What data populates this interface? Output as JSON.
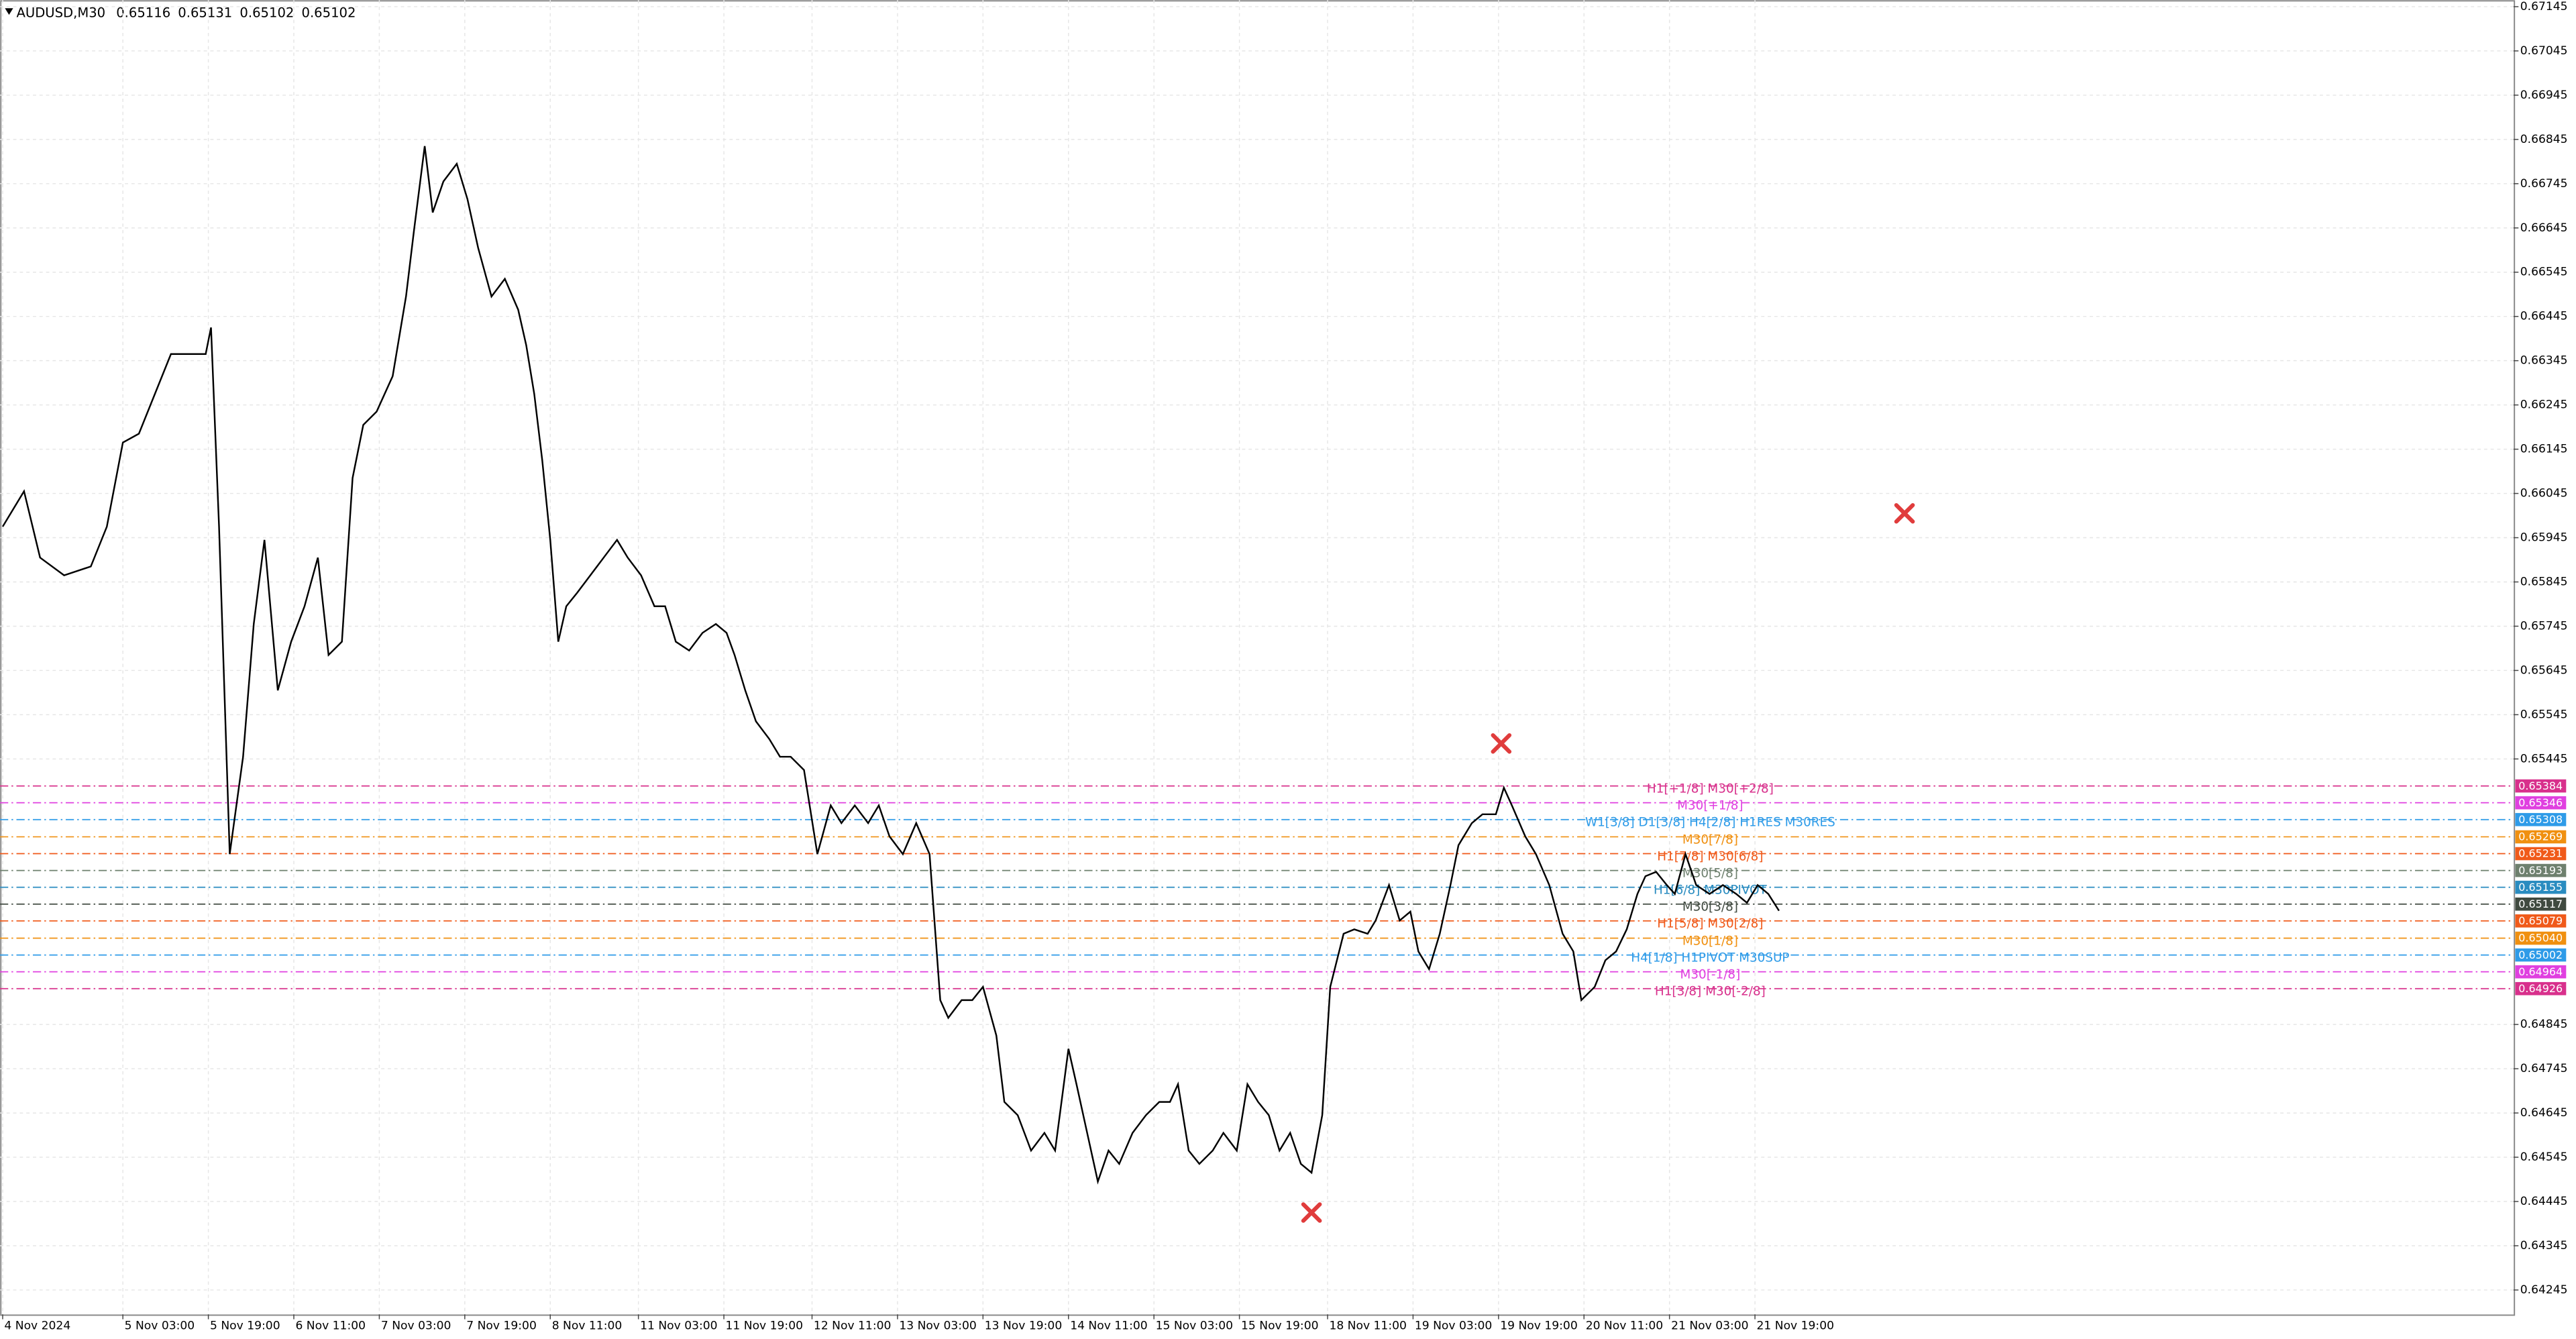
{
  "chart_data": {
    "type": "line",
    "symbol": "AUDUSD,M30",
    "ohlc": [
      0.65116,
      0.65131,
      0.65102,
      0.65102
    ],
    "xlim": [
      -1,
      940
    ],
    "ylim": [
      0.6419,
      0.6716
    ],
    "grid": true,
    "xticks": [
      {
        "value": 0,
        "label": "4 Nov 2024"
      },
      {
        "value": 45,
        "label": "5 Nov 03:00"
      },
      {
        "value": 77,
        "label": "5 Nov 19:00"
      },
      {
        "value": 109,
        "label": "6 Nov 11:00"
      },
      {
        "value": 141,
        "label": "7 Nov 03:00"
      },
      {
        "value": 173,
        "label": "7 Nov 19:00"
      },
      {
        "value": 205,
        "label": "8 Nov 11:00"
      },
      {
        "value": 238,
        "label": "11 Nov 03:00"
      },
      {
        "value": 270,
        "label": "11 Nov 19:00"
      },
      {
        "value": 303,
        "label": "12 Nov 11:00"
      },
      {
        "value": 335,
        "label": "13 Nov 03:00"
      },
      {
        "value": 367,
        "label": "13 Nov 19:00"
      },
      {
        "value": 399,
        "label": "14 Nov 11:00"
      },
      {
        "value": 431,
        "label": "15 Nov 03:00"
      },
      {
        "value": 463,
        "label": "15 Nov 19:00"
      },
      {
        "value": 496,
        "label": "18 Nov 11:00"
      },
      {
        "value": 528,
        "label": "19 Nov 03:00"
      },
      {
        "value": 560,
        "label": "19 Nov 19:00"
      },
      {
        "value": 592,
        "label": "20 Nov 11:00"
      },
      {
        "value": 624,
        "label": "21 Nov 03:00"
      },
      {
        "value": 656,
        "label": "21 Nov 19:00"
      }
    ],
    "yticks": [
      0.67145,
      0.67045,
      0.66945,
      0.66845,
      0.66745,
      0.66645,
      0.66545,
      0.66445,
      0.66345,
      0.66245,
      0.66145,
      0.66045,
      0.65945,
      0.65845,
      0.65745,
      0.65645,
      0.65545,
      0.65445,
      0.64845,
      0.64745,
      0.64645,
      0.64545,
      0.64445,
      0.64345,
      0.64245
    ],
    "x": [
      0,
      8,
      14,
      23,
      33,
      39,
      45,
      51,
      57,
      63,
      70,
      76,
      78,
      81,
      85,
      90,
      94,
      98,
      103,
      108,
      113,
      118,
      122,
      127,
      131,
      135,
      140,
      146,
      151,
      154,
      158,
      161,
      165,
      170,
      174,
      178,
      183,
      188,
      193,
      196,
      199,
      202,
      205,
      208,
      211,
      215,
      220,
      225,
      230,
      234,
      239,
      244,
      248,
      252,
      257,
      262,
      267,
      271,
      274,
      278,
      282,
      287,
      291,
      295,
      300,
      305,
      310,
      314,
      319,
      324,
      328,
      332,
      337,
      342,
      347,
      351,
      354,
      359,
      363,
      367,
      372,
      375,
      380,
      385,
      390,
      394,
      399,
      402,
      406,
      410,
      414,
      418,
      423,
      428,
      433,
      437,
      440,
      444,
      448,
      453,
      457,
      462,
      466,
      470,
      474,
      478,
      482,
      486,
      490,
      494,
      497,
      502,
      506,
      511,
      514,
      519,
      523,
      527,
      530,
      534,
      538,
      542,
      545,
      550,
      554,
      559,
      562,
      565,
      570,
      574,
      579,
      584,
      588,
      591,
      596,
      600,
      604,
      608,
      612,
      615,
      619,
      623,
      626,
      630,
      634,
      639,
      644,
      649,
      653,
      657,
      661,
      665
    ],
    "series": [
      {
        "color": "#000000",
        "values": [
          0.6597,
          0.6605,
          0.659,
          0.6586,
          0.6588,
          0.6597,
          0.6616,
          0.6618,
          0.6627,
          0.6636,
          0.6636,
          0.6636,
          0.6642,
          0.6597,
          0.6523,
          0.6545,
          0.6575,
          0.6594,
          0.656,
          0.6571,
          0.6579,
          0.659,
          0.6568,
          0.6571,
          0.6608,
          0.662,
          0.6623,
          0.6631,
          0.6649,
          0.6664,
          0.6683,
          0.6668,
          0.6675,
          0.6679,
          0.6671,
          0.666,
          0.6649,
          0.6653,
          0.6646,
          0.6638,
          0.6627,
          0.6612,
          0.6594,
          0.6571,
          0.6579,
          0.6582,
          0.6586,
          0.659,
          0.6594,
          0.659,
          0.6586,
          0.6579,
          0.6579,
          0.6571,
          0.6569,
          0.6573,
          0.6575,
          0.6573,
          0.6568,
          0.656,
          0.6553,
          0.6549,
          0.6545,
          0.6545,
          0.6542,
          0.6523,
          0.6534,
          0.653,
          0.6534,
          0.653,
          0.6534,
          0.6527,
          0.6523,
          0.653,
          0.6523,
          0.649,
          0.6486,
          0.649,
          0.649,
          0.6493,
          0.6482,
          0.6467,
          0.6464,
          0.6456,
          0.646,
          0.6456,
          0.6479,
          0.6471,
          0.646,
          0.6449,
          0.6456,
          0.6453,
          0.646,
          0.6464,
          0.6467,
          0.6467,
          0.6471,
          0.6456,
          0.6453,
          0.6456,
          0.646,
          0.6456,
          0.6471,
          0.6467,
          0.6464,
          0.6456,
          0.646,
          0.6453,
          0.6451,
          0.6464,
          0.6493,
          0.6505,
          0.6506,
          0.6505,
          0.6508,
          0.6516,
          0.6508,
          0.651,
          0.6501,
          0.6497,
          0.6505,
          0.6516,
          0.6525,
          0.653,
          0.6532,
          0.6532,
          0.6538,
          0.6534,
          0.6527,
          0.6523,
          0.6516,
          0.6505,
          0.6501,
          0.649,
          0.6493,
          0.6499,
          0.6501,
          0.6506,
          0.6514,
          0.6518,
          0.6519,
          0.6516,
          0.6514,
          0.6523,
          0.6516,
          0.6514,
          0.6516,
          0.6514,
          0.6512,
          0.6516,
          0.6514,
          0.65102
        ]
      }
    ],
    "levels": [
      {
        "label": "H1[+1/8] M30[+2/8]",
        "price": 0.65384,
        "color": "#d8308c"
      },
      {
        "label": "M30[+1/8]",
        "price": 0.65346,
        "color": "#e040e0"
      },
      {
        "label": "W1[3/8] D1[3/8] H4[2/8] H1RES M30RES",
        "price": 0.65308,
        "color": "#2e9be8"
      },
      {
        "label": "M30[7/8]",
        "price": 0.65269,
        "color": "#f09010"
      },
      {
        "label": "H1[7/8] M30[6/8]",
        "price": 0.65231,
        "color": "#f05a1a"
      },
      {
        "label": "M30[5/8]",
        "price": 0.65193,
        "color": "#6e806e"
      },
      {
        "label": "H1[6/8] M30PIVOT",
        "price": 0.65155,
        "color": "#2a8cc0"
      },
      {
        "label": "M30[3/8]",
        "price": 0.65117,
        "color": "#404a40"
      },
      {
        "label": "H1[5/8] M30[2/8]",
        "price": 0.65079,
        "color": "#f05a1a"
      },
      {
        "label": "M30[1/8]",
        "price": 0.6504,
        "price_label": "0.65040",
        "color": "#f09010"
      },
      {
        "label": "H4[1/8] H1PIVOT M30SUP",
        "price": 0.65002,
        "color": "#2e9be8"
      },
      {
        "label": "M30[-1/8]",
        "price": 0.64964,
        "color": "#e040e0"
      },
      {
        "label": "H1[3/8] M30[-2/8]",
        "price": 0.64926,
        "color": "#d8308c"
      }
    ],
    "markers": [
      {
        "x": 561,
        "y": 0.6548
      },
      {
        "x": 712,
        "y": 0.66
      },
      {
        "x": 490,
        "y": 0.6442
      }
    ],
    "marker_color": "#e03c3c"
  }
}
